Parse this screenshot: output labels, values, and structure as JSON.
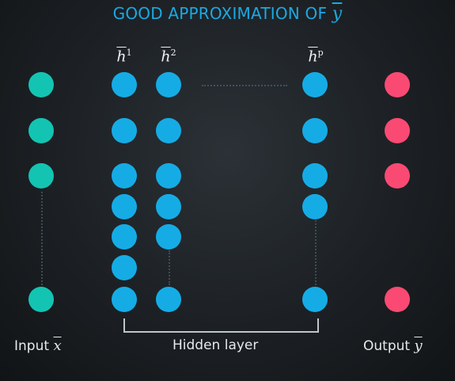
{
  "title": {
    "text": "GOOD APPROXIMATION OF",
    "variable": "y"
  },
  "hidden_labels": [
    {
      "symbol": "h",
      "superscript": "1"
    },
    {
      "symbol": "h",
      "superscript": "2"
    },
    {
      "symbol": "h",
      "superscript": "p"
    }
  ],
  "captions": {
    "input": {
      "text": "Input",
      "variable": "x"
    },
    "hidden": {
      "text": "Hidden layer"
    },
    "output": {
      "text": "Output",
      "variable": "y"
    }
  },
  "colors": {
    "title": "#1ba9e3",
    "input_node": "#14c4b3",
    "hidden_node": "#15ace6",
    "output_node": "#fa4a73"
  }
}
